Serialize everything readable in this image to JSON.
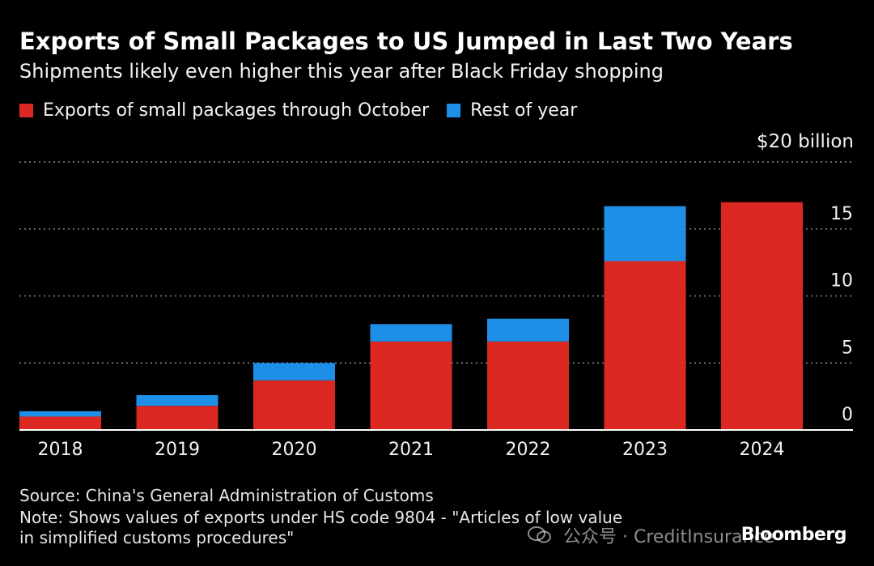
{
  "header": {
    "title": "Exports of Small Packages to US Jumped in Last Two Years",
    "subtitle": "Shipments likely even higher this year after Black Friday shopping"
  },
  "legend": {
    "through_october": "Exports of small packages through October",
    "rest_of_year": "Rest of year"
  },
  "colors": {
    "through_october": "#dc2823",
    "rest_of_year": "#1e8fe6",
    "gridline": "#8a8a8a",
    "background": "#000000"
  },
  "footer": {
    "source": "Source: China's General Administration of Customs",
    "note_line1": "Note: Shows values of exports under HS code 9804 - \"Articles of low value",
    "note_line2": "in simplified customs procedures\"",
    "watermark": "公众号 · CreditInsurance",
    "brand": "Bloomberg"
  },
  "chart_data": {
    "type": "bar",
    "stacked": true,
    "categories": [
      "2018",
      "2019",
      "2020",
      "2021",
      "2022",
      "2023",
      "2024"
    ],
    "series": [
      {
        "name": "Exports of small packages through October",
        "values": [
          1.0,
          1.8,
          3.7,
          6.6,
          6.6,
          12.6,
          17.0
        ]
      },
      {
        "name": "Rest of year",
        "values": [
          0.4,
          0.8,
          1.3,
          1.3,
          1.7,
          4.1,
          0
        ]
      }
    ],
    "ylim": [
      0,
      20
    ],
    "yticks": [
      0,
      5,
      10,
      15,
      20
    ],
    "ytick_labels": [
      "0",
      "5",
      "10",
      "15",
      "$20 billion"
    ],
    "yaxis_position": "right",
    "grid": true,
    "legend_position": "top-left"
  }
}
